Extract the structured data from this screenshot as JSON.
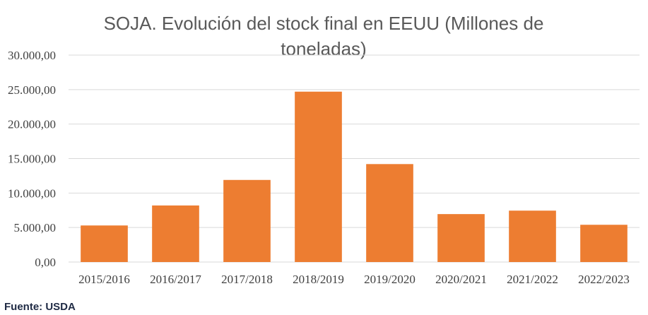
{
  "chart_data": {
    "type": "bar",
    "title_lines": [
      "SOJA. Evolución del stock final en EEUU (Millones de",
      "toneladas)"
    ],
    "categories": [
      "2015/2016",
      "2016/2017",
      "2017/2018",
      "2018/2019",
      "2019/2020",
      "2020/2021",
      "2021/2022",
      "2022/2023"
    ],
    "values": [
      5300,
      8200,
      11900,
      24700,
      14200,
      6950,
      7450,
      5400
    ],
    "ylim": [
      0,
      30000
    ],
    "yticks": [
      0,
      5000,
      10000,
      15000,
      20000,
      25000,
      30000
    ],
    "ytick_labels": [
      "0,00",
      "5.000,00",
      "10.000,00",
      "15.000,00",
      "20.000,00",
      "25.000,00",
      "30.000,00"
    ],
    "grid": true,
    "bar_color": "#ED7D31",
    "grid_color": "#D9D9D9"
  },
  "source": "Fuente: USDA"
}
